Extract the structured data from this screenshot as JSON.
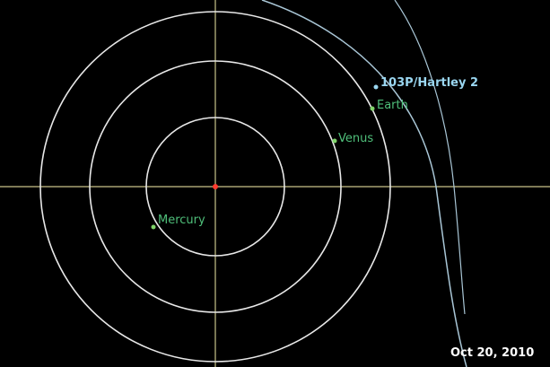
{
  "colors": {
    "background": "#000000",
    "orbit": "#e8e8e8",
    "comet_orbit": "#a9c6d6",
    "axes": "#c9c48a",
    "sun": "#ff3b2f",
    "planet_label": "#4fbf7a",
    "planet_dot": "#7fd46a",
    "comet": "#9ad6f0",
    "date": "#ffffff"
  },
  "sun": {
    "name": "sun"
  },
  "planets": [
    {
      "key": "mercury",
      "label": "Mercury"
    },
    {
      "key": "venus",
      "label": "Venus"
    },
    {
      "key": "earth",
      "label": "Earth"
    }
  ],
  "comet": {
    "label": "103P/Hartley 2"
  },
  "date_label": "Oct 20, 2010"
}
